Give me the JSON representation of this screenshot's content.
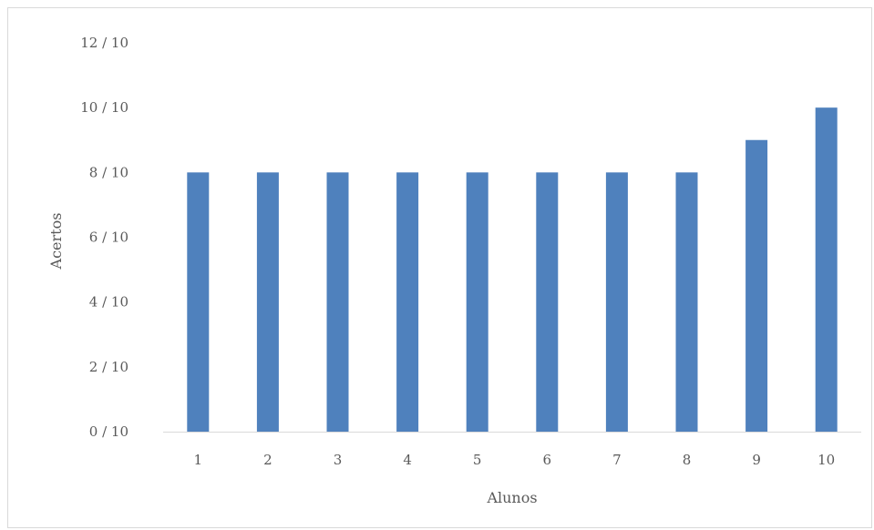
{
  "chart_data": {
    "type": "bar",
    "title": "",
    "xlabel": "Alunos",
    "ylabel": "Acertos",
    "categories": [
      "1",
      "2",
      "3",
      "4",
      "5",
      "6",
      "7",
      "8",
      "9",
      "10"
    ],
    "values": [
      8,
      8,
      8,
      8,
      8,
      8,
      8,
      8,
      9,
      10
    ],
    "ylim": [
      0,
      12
    ],
    "y_ticks": [
      0,
      2,
      4,
      6,
      8,
      10,
      12
    ],
    "y_tick_labels": [
      "0 / 10",
      "2 / 10",
      "4 / 10",
      "6 / 10",
      "8 / 10",
      "10 / 10",
      "12 / 10"
    ],
    "grid": false,
    "legend": "none",
    "bar_color": "#4f81bd",
    "axis_color": "#d9d9d9",
    "text_color": "#595959"
  }
}
